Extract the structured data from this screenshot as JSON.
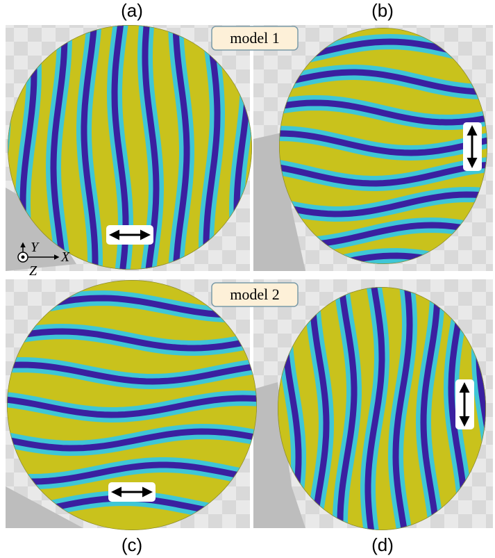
{
  "panels": [
    {
      "label": "(a)"
    },
    {
      "label": "(b)"
    },
    {
      "label": "(c)"
    },
    {
      "label": "(d)"
    }
  ],
  "models": [
    "model 1",
    "model 2"
  ],
  "axes": {
    "y": "Y",
    "x": "X",
    "z": "Z"
  }
}
